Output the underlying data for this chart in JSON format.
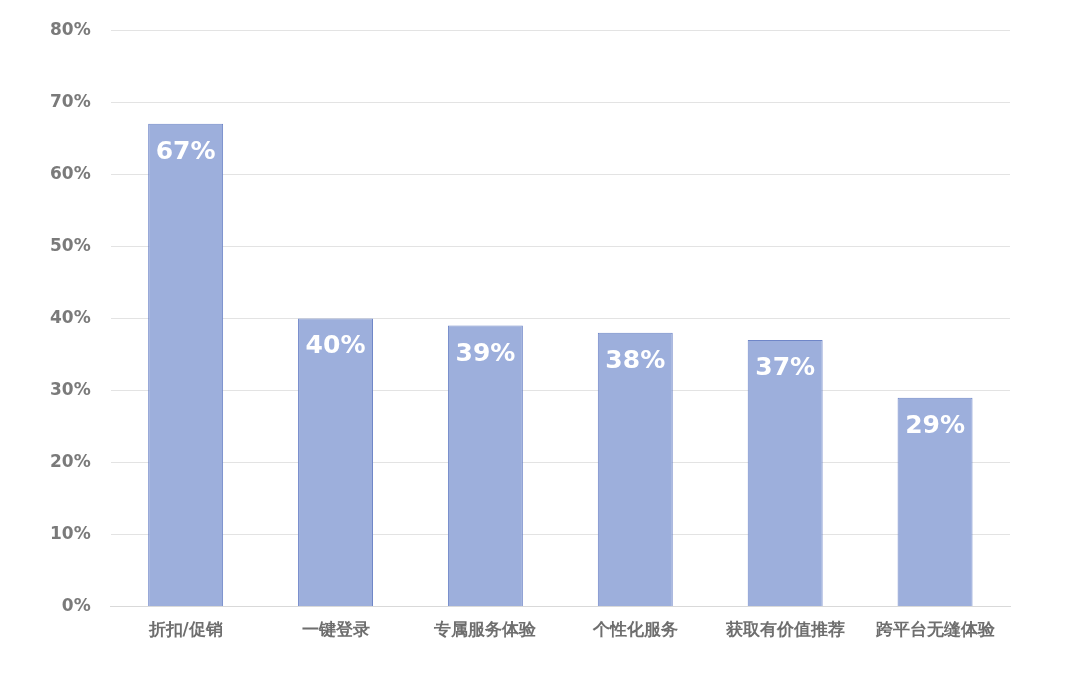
{
  "chart_data": {
    "type": "bar",
    "categories": [
      "折扣/促销",
      "一键登录",
      "专属服务体验",
      "个性化服务",
      "获取有价值推荐",
      "跨平台无缝体验"
    ],
    "values": [
      67,
      40,
      39,
      38,
      37,
      29
    ],
    "value_labels": [
      "67%",
      "40%",
      "39%",
      "38%",
      "37%",
      "29%"
    ],
    "color": "#9dafdc",
    "ylim": [
      0,
      80
    ],
    "yticks": [
      {
        "value": 0,
        "label": "0%"
      },
      {
        "value": 10,
        "label": "10%"
      },
      {
        "value": 20,
        "label": "20%"
      },
      {
        "value": 30,
        "label": "30%"
      },
      {
        "value": 40,
        "label": "40%"
      },
      {
        "value": 50,
        "label": "50%"
      },
      {
        "value": 60,
        "label": "60%"
      },
      {
        "value": 70,
        "label": "70%"
      },
      {
        "value": 80,
        "label": "80%"
      }
    ],
    "grid": "y",
    "legend": false
  }
}
